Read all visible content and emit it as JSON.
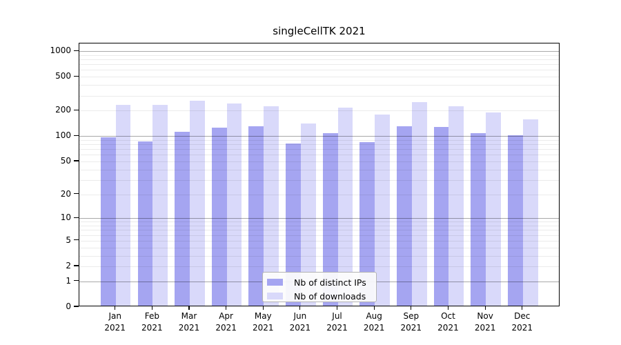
{
  "chart_data": {
    "type": "bar",
    "title": "singleCellTK 2021",
    "categories": [
      "Jan",
      "Feb",
      "Mar",
      "Apr",
      "May",
      "Jun",
      "Jul",
      "Aug",
      "Sep",
      "Oct",
      "Nov",
      "Dec"
    ],
    "category_year": "2021",
    "series": [
      {
        "name": "Nb of distinct IPs",
        "color": "#a5a5f1",
        "values": [
          93,
          84,
          109,
          122,
          126,
          79,
          105,
          82,
          125,
          124,
          104,
          99
        ]
      },
      {
        "name": "Nb of downloads",
        "color": "#d9d9fa",
        "values": [
          226,
          225,
          250,
          232,
          218,
          136,
          210,
          172,
          241,
          216,
          182,
          152
        ]
      }
    ],
    "yaxis": {
      "scale": "log1p",
      "ticks": [
        0,
        1,
        2,
        5,
        10,
        20,
        50,
        100,
        200,
        500,
        1000
      ],
      "major_gridlines": [
        1,
        10,
        100,
        1000
      ],
      "ylim": [
        0,
        1230
      ],
      "grid": true
    },
    "xlabel": "",
    "ylabel": "",
    "legend_position": "lower center inside"
  }
}
